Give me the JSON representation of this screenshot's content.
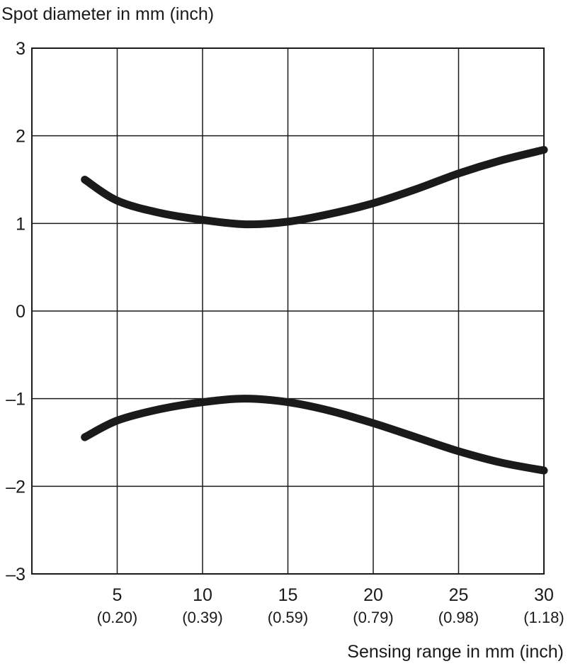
{
  "chart_data": {
    "type": "line",
    "ylabel": "Spot diameter in mm (inch)",
    "xlabel": "Sensing range in mm (inch)",
    "xlim": [
      0,
      30
    ],
    "ylim": [
      -3,
      3
    ],
    "grid": true,
    "x_ticks": [
      {
        "value": 5,
        "label": "5",
        "sublabel": "(0.20)"
      },
      {
        "value": 10,
        "label": "10",
        "sublabel": "(0.39)"
      },
      {
        "value": 15,
        "label": "15",
        "sublabel": "(0.59)"
      },
      {
        "value": 20,
        "label": "20",
        "sublabel": "(0.79)"
      },
      {
        "value": 25,
        "label": "25",
        "sublabel": "(0.98)"
      },
      {
        "value": 30,
        "label": "30",
        "sublabel": "(1.18)"
      }
    ],
    "y_ticks": [
      {
        "value": 3,
        "label": "3"
      },
      {
        "value": 2,
        "label": "2"
      },
      {
        "value": 1,
        "label": "1"
      },
      {
        "value": 0,
        "label": "0"
      },
      {
        "value": -1,
        "label": "–1"
      },
      {
        "value": -2,
        "label": "–2"
      },
      {
        "value": -3,
        "label": "–3"
      }
    ],
    "series": [
      {
        "x": [
          3.1,
          5,
          7.5,
          10,
          12.5,
          15,
          17.5,
          20,
          22.5,
          25,
          27.5,
          30
        ],
        "y": [
          1.5,
          1.26,
          1.12,
          1.04,
          0.99,
          1.02,
          1.11,
          1.23,
          1.39,
          1.57,
          1.72,
          1.84
        ],
        "color": "#1a1a1a"
      },
      {
        "x": [
          3.1,
          5,
          7.5,
          10,
          12.5,
          15,
          17.5,
          20,
          22.5,
          25,
          27.5,
          30
        ],
        "y": [
          -1.44,
          -1.25,
          -1.12,
          -1.04,
          -1.0,
          -1.04,
          -1.14,
          -1.28,
          -1.44,
          -1.6,
          -1.73,
          -1.82
        ],
        "color": "#1a1a1a"
      }
    ]
  }
}
